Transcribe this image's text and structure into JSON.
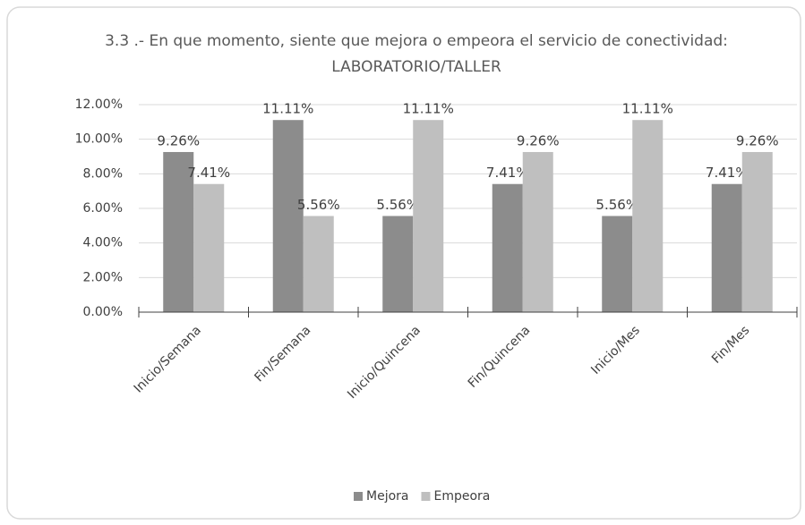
{
  "chart_data": {
    "type": "bar",
    "title": "3.3 .- En que momento, siente que mejora o empeora el servicio de conectividad: LABORATORIO/TALLER",
    "categories": [
      "Inicio/Semana",
      "Fin/Semana",
      "Inicio/Quincena",
      "Fin/Quincena",
      "Inicio/Mes",
      "Fin/Mes"
    ],
    "series": [
      {
        "name": "Mejora",
        "color": "#8c8c8c",
        "values": [
          9.26,
          11.11,
          5.56,
          7.41,
          5.56,
          7.41
        ],
        "value_labels": [
          "9.26%",
          "11.11%",
          "5.56%",
          "7.41%",
          "5.56%",
          "7.41%"
        ]
      },
      {
        "name": "Empeora",
        "color": "#bfbfbf",
        "values": [
          7.41,
          5.56,
          11.11,
          9.26,
          11.11,
          9.26
        ],
        "value_labels": [
          "7.41%",
          "5.56%",
          "11.11%",
          "9.26%",
          "11.11%",
          "9.26%"
        ]
      }
    ],
    "ylim": [
      0,
      12
    ],
    "yticks": [
      {
        "value": 0,
        "label": "0.00%"
      },
      {
        "value": 2,
        "label": "2.00%"
      },
      {
        "value": 4,
        "label": "4.00%"
      },
      {
        "value": 6,
        "label": "6.00%"
      },
      {
        "value": 8,
        "label": "8.00%"
      },
      {
        "value": 10,
        "label": "10.00%"
      },
      {
        "value": 12,
        "label": "12.00%"
      }
    ],
    "grid": true,
    "legend": "bottom"
  }
}
